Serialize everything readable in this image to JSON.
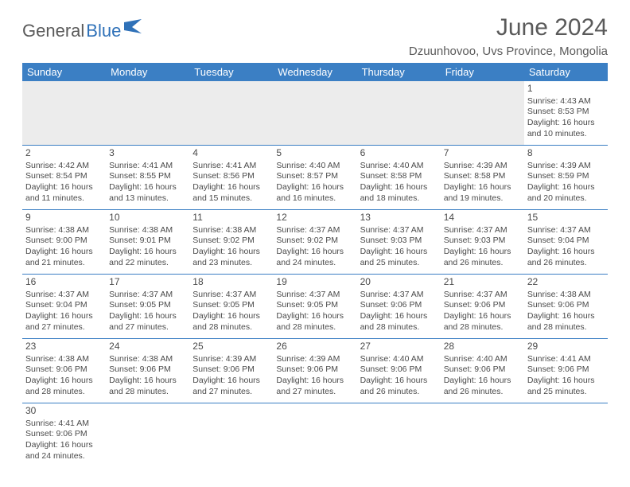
{
  "brand": {
    "part1": "General",
    "part2": "Blue"
  },
  "title": "June 2024",
  "location": "Dzuunhovoo, Uvs Province, Mongolia",
  "dayHeaders": [
    "Sunday",
    "Monday",
    "Tuesday",
    "Wednesday",
    "Thursday",
    "Friday",
    "Saturday"
  ],
  "colors": {
    "header_bg": "#3b7fc4",
    "header_text": "#ffffff",
    "border": "#3b7fc4",
    "body_text": "#4a4a4a",
    "title_text": "#5a5a5a",
    "empty_bg": "#ececec",
    "logo_blue": "#2f71b8"
  },
  "weeks": [
    [
      null,
      null,
      null,
      null,
      null,
      null,
      {
        "n": "1",
        "sr": "Sunrise: 4:43 AM",
        "ss": "Sunset: 8:53 PM",
        "dl1": "Daylight: 16 hours",
        "dl2": "and 10 minutes."
      }
    ],
    [
      {
        "n": "2",
        "sr": "Sunrise: 4:42 AM",
        "ss": "Sunset: 8:54 PM",
        "dl1": "Daylight: 16 hours",
        "dl2": "and 11 minutes."
      },
      {
        "n": "3",
        "sr": "Sunrise: 4:41 AM",
        "ss": "Sunset: 8:55 PM",
        "dl1": "Daylight: 16 hours",
        "dl2": "and 13 minutes."
      },
      {
        "n": "4",
        "sr": "Sunrise: 4:41 AM",
        "ss": "Sunset: 8:56 PM",
        "dl1": "Daylight: 16 hours",
        "dl2": "and 15 minutes."
      },
      {
        "n": "5",
        "sr": "Sunrise: 4:40 AM",
        "ss": "Sunset: 8:57 PM",
        "dl1": "Daylight: 16 hours",
        "dl2": "and 16 minutes."
      },
      {
        "n": "6",
        "sr": "Sunrise: 4:40 AM",
        "ss": "Sunset: 8:58 PM",
        "dl1": "Daylight: 16 hours",
        "dl2": "and 18 minutes."
      },
      {
        "n": "7",
        "sr": "Sunrise: 4:39 AM",
        "ss": "Sunset: 8:58 PM",
        "dl1": "Daylight: 16 hours",
        "dl2": "and 19 minutes."
      },
      {
        "n": "8",
        "sr": "Sunrise: 4:39 AM",
        "ss": "Sunset: 8:59 PM",
        "dl1": "Daylight: 16 hours",
        "dl2": "and 20 minutes."
      }
    ],
    [
      {
        "n": "9",
        "sr": "Sunrise: 4:38 AM",
        "ss": "Sunset: 9:00 PM",
        "dl1": "Daylight: 16 hours",
        "dl2": "and 21 minutes."
      },
      {
        "n": "10",
        "sr": "Sunrise: 4:38 AM",
        "ss": "Sunset: 9:01 PM",
        "dl1": "Daylight: 16 hours",
        "dl2": "and 22 minutes."
      },
      {
        "n": "11",
        "sr": "Sunrise: 4:38 AM",
        "ss": "Sunset: 9:02 PM",
        "dl1": "Daylight: 16 hours",
        "dl2": "and 23 minutes."
      },
      {
        "n": "12",
        "sr": "Sunrise: 4:37 AM",
        "ss": "Sunset: 9:02 PM",
        "dl1": "Daylight: 16 hours",
        "dl2": "and 24 minutes."
      },
      {
        "n": "13",
        "sr": "Sunrise: 4:37 AM",
        "ss": "Sunset: 9:03 PM",
        "dl1": "Daylight: 16 hours",
        "dl2": "and 25 minutes."
      },
      {
        "n": "14",
        "sr": "Sunrise: 4:37 AM",
        "ss": "Sunset: 9:03 PM",
        "dl1": "Daylight: 16 hours",
        "dl2": "and 26 minutes."
      },
      {
        "n": "15",
        "sr": "Sunrise: 4:37 AM",
        "ss": "Sunset: 9:04 PM",
        "dl1": "Daylight: 16 hours",
        "dl2": "and 26 minutes."
      }
    ],
    [
      {
        "n": "16",
        "sr": "Sunrise: 4:37 AM",
        "ss": "Sunset: 9:04 PM",
        "dl1": "Daylight: 16 hours",
        "dl2": "and 27 minutes."
      },
      {
        "n": "17",
        "sr": "Sunrise: 4:37 AM",
        "ss": "Sunset: 9:05 PM",
        "dl1": "Daylight: 16 hours",
        "dl2": "and 27 minutes."
      },
      {
        "n": "18",
        "sr": "Sunrise: 4:37 AM",
        "ss": "Sunset: 9:05 PM",
        "dl1": "Daylight: 16 hours",
        "dl2": "and 28 minutes."
      },
      {
        "n": "19",
        "sr": "Sunrise: 4:37 AM",
        "ss": "Sunset: 9:05 PM",
        "dl1": "Daylight: 16 hours",
        "dl2": "and 28 minutes."
      },
      {
        "n": "20",
        "sr": "Sunrise: 4:37 AM",
        "ss": "Sunset: 9:06 PM",
        "dl1": "Daylight: 16 hours",
        "dl2": "and 28 minutes."
      },
      {
        "n": "21",
        "sr": "Sunrise: 4:37 AM",
        "ss": "Sunset: 9:06 PM",
        "dl1": "Daylight: 16 hours",
        "dl2": "and 28 minutes."
      },
      {
        "n": "22",
        "sr": "Sunrise: 4:38 AM",
        "ss": "Sunset: 9:06 PM",
        "dl1": "Daylight: 16 hours",
        "dl2": "and 28 minutes."
      }
    ],
    [
      {
        "n": "23",
        "sr": "Sunrise: 4:38 AM",
        "ss": "Sunset: 9:06 PM",
        "dl1": "Daylight: 16 hours",
        "dl2": "and 28 minutes."
      },
      {
        "n": "24",
        "sr": "Sunrise: 4:38 AM",
        "ss": "Sunset: 9:06 PM",
        "dl1": "Daylight: 16 hours",
        "dl2": "and 28 minutes."
      },
      {
        "n": "25",
        "sr": "Sunrise: 4:39 AM",
        "ss": "Sunset: 9:06 PM",
        "dl1": "Daylight: 16 hours",
        "dl2": "and 27 minutes."
      },
      {
        "n": "26",
        "sr": "Sunrise: 4:39 AM",
        "ss": "Sunset: 9:06 PM",
        "dl1": "Daylight: 16 hours",
        "dl2": "and 27 minutes."
      },
      {
        "n": "27",
        "sr": "Sunrise: 4:40 AM",
        "ss": "Sunset: 9:06 PM",
        "dl1": "Daylight: 16 hours",
        "dl2": "and 26 minutes."
      },
      {
        "n": "28",
        "sr": "Sunrise: 4:40 AM",
        "ss": "Sunset: 9:06 PM",
        "dl1": "Daylight: 16 hours",
        "dl2": "and 26 minutes."
      },
      {
        "n": "29",
        "sr": "Sunrise: 4:41 AM",
        "ss": "Sunset: 9:06 PM",
        "dl1": "Daylight: 16 hours",
        "dl2": "and 25 minutes."
      }
    ],
    [
      {
        "n": "30",
        "sr": "Sunrise: 4:41 AM",
        "ss": "Sunset: 9:06 PM",
        "dl1": "Daylight: 16 hours",
        "dl2": "and 24 minutes."
      },
      null,
      null,
      null,
      null,
      null,
      null
    ]
  ]
}
